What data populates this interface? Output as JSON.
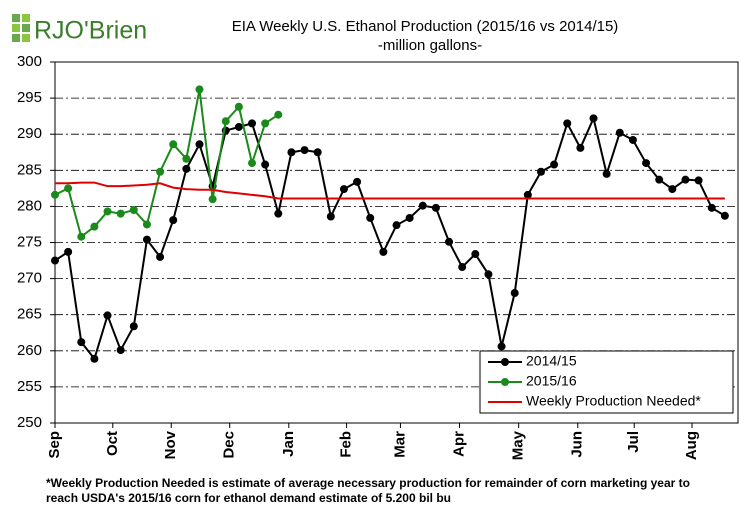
{
  "logo": "RJO'Brien",
  "chart_data": {
    "type": "line",
    "title": "EIA Weekly U.S. Ethanol Production (2015/16 vs 2014/15)",
    "subtitle": "-million  gallons-",
    "x": [
      0,
      1,
      2,
      3,
      4,
      5,
      6,
      7,
      8,
      9,
      10,
      11,
      12,
      13,
      14,
      15,
      16,
      17,
      18,
      19,
      20,
      21,
      22,
      23,
      24,
      25,
      26,
      27,
      28,
      29,
      30,
      31,
      32,
      33,
      34,
      35,
      36,
      37,
      38,
      39,
      40,
      41,
      42,
      43,
      44,
      45,
      46,
      47,
      48,
      49,
      50,
      51
    ],
    "xlim": [
      0,
      52
    ],
    "xticks": [
      {
        "value": 0,
        "label": "Sep"
      },
      {
        "value": 4.4,
        "label": "Oct"
      },
      {
        "value": 8.85,
        "label": "Nov"
      },
      {
        "value": 13.3,
        "label": "Dec"
      },
      {
        "value": 17.8,
        "label": "Jan"
      },
      {
        "value": 22.2,
        "label": "Feb"
      },
      {
        "value": 26.3,
        "label": "Mar"
      },
      {
        "value": 30.8,
        "label": "Apr"
      },
      {
        "value": 35.3,
        "label": "May"
      },
      {
        "value": 39.8,
        "label": "Jun"
      },
      {
        "value": 44.1,
        "label": "Jul"
      },
      {
        "value": 48.5,
        "label": "Aug"
      }
    ],
    "ylim": [
      250,
      300
    ],
    "yticks": [
      250,
      255,
      260,
      265,
      270,
      275,
      280,
      285,
      290,
      295,
      300
    ],
    "grid": true,
    "legend": "lower right",
    "series": [
      {
        "name": "2014/15",
        "color": "#000000",
        "marker": true,
        "values": [
          272.5,
          273.7,
          261.2,
          258.9,
          264.9,
          260.1,
          263.4,
          275.4,
          273.0,
          278.1,
          285.2,
          288.6,
          282.8,
          290.5,
          291.0,
          291.5,
          285.8,
          279.0,
          287.5,
          287.8,
          287.5,
          278.6,
          282.4,
          283.4,
          278.4,
          273.7,
          277.4,
          278.4,
          280.1,
          279.8,
          275.1,
          271.6,
          273.4,
          270.6,
          260.6,
          268.0,
          281.6,
          284.8,
          285.8,
          291.5,
          288.1,
          292.2,
          284.5,
          290.2,
          289.2,
          286.0,
          283.7,
          282.4,
          283.7,
          283.6,
          279.8,
          278.7
        ]
      },
      {
        "name": "2015/16",
        "color": "#1a8a1a",
        "marker": true,
        "values": [
          281.6,
          282.5,
          275.8,
          277.2,
          279.3,
          279.0,
          279.5,
          277.5,
          284.8,
          288.6,
          286.6,
          296.2,
          281.0,
          291.8,
          293.8,
          286.0,
          291.5,
          292.7,
          null,
          null,
          null,
          null,
          null,
          null,
          null,
          null,
          null,
          null,
          null,
          null,
          null,
          null,
          null,
          null,
          null,
          null,
          null,
          null,
          null,
          null,
          null,
          null,
          null,
          null,
          null,
          null,
          null,
          null,
          null,
          null,
          null,
          null
        ]
      },
      {
        "name": "Weekly Production Needed*",
        "color": "#e00000",
        "marker": false,
        "values": [
          283.2,
          283.2,
          283.3,
          283.3,
          282.8,
          282.8,
          282.9,
          283.0,
          283.2,
          282.6,
          282.4,
          282.3,
          282.3,
          282.0,
          281.8,
          281.6,
          281.4,
          281.1,
          281.1,
          281.1,
          281.1,
          281.1,
          281.1,
          281.1,
          281.1,
          281.1,
          281.1,
          281.1,
          281.1,
          281.1,
          281.1,
          281.1,
          281.1,
          281.1,
          281.1,
          281.1,
          281.1,
          281.1,
          281.1,
          281.1,
          281.1,
          281.1,
          281.1,
          281.1,
          281.1,
          281.1,
          281.1,
          281.1,
          281.1,
          281.1,
          281.1,
          281.1
        ]
      }
    ],
    "notes": [
      "*Weekly Production Needed is estimate of average necessary production for remainder of corn marketing year to",
      "reach USDA's 2015/16 corn for ethanol demand estimate of 5.200 bil bu"
    ]
  }
}
